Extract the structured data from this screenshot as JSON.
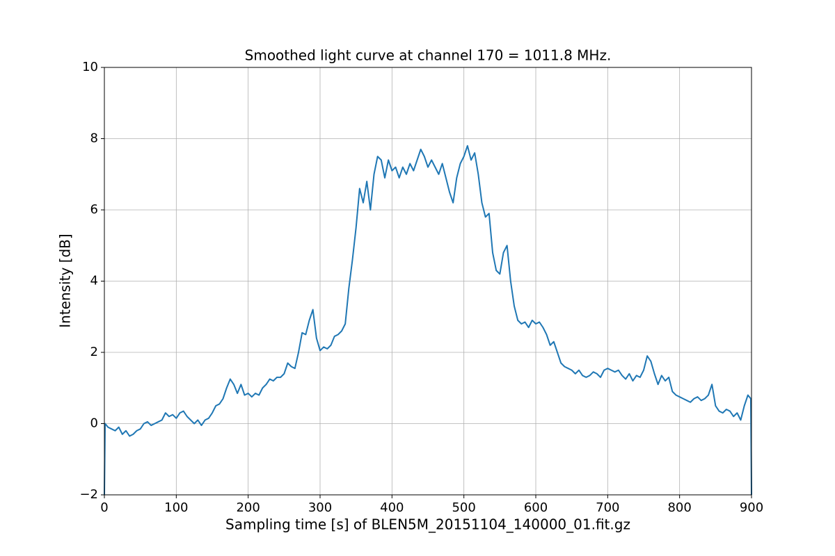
{
  "chart_data": {
    "type": "line",
    "title": "Smoothed light curve at channel 170 = 1011.8 MHz.",
    "x_label": "Sampling time [s] of BLEN5M_20151104_140000_01.fit.gz",
    "y_label": "Intensity [dB]",
    "x": [
      0,
      1,
      5,
      10,
      15,
      20,
      25,
      30,
      35,
      40,
      45,
      50,
      55,
      60,
      65,
      70,
      75,
      80,
      85,
      90,
      95,
      100,
      105,
      110,
      115,
      120,
      125,
      130,
      135,
      140,
      145,
      150,
      155,
      160,
      165,
      170,
      175,
      180,
      185,
      190,
      195,
      200,
      205,
      210,
      215,
      220,
      225,
      230,
      235,
      240,
      245,
      250,
      255,
      260,
      265,
      270,
      275,
      280,
      285,
      290,
      295,
      300,
      305,
      310,
      315,
      320,
      325,
      330,
      335,
      340,
      345,
      350,
      355,
      360,
      365,
      370,
      375,
      380,
      385,
      390,
      395,
      400,
      405,
      410,
      415,
      420,
      425,
      430,
      435,
      440,
      445,
      450,
      455,
      460,
      465,
      470,
      475,
      480,
      485,
      490,
      495,
      500,
      505,
      510,
      515,
      520,
      525,
      530,
      535,
      540,
      545,
      550,
      555,
      560,
      565,
      570,
      575,
      580,
      585,
      590,
      595,
      600,
      605,
      610,
      615,
      620,
      625,
      630,
      635,
      640,
      645,
      650,
      655,
      660,
      665,
      670,
      675,
      680,
      685,
      690,
      695,
      700,
      705,
      710,
      715,
      720,
      725,
      730,
      735,
      740,
      745,
      750,
      755,
      760,
      765,
      770,
      775,
      780,
      785,
      790,
      795,
      800,
      805,
      810,
      815,
      820,
      825,
      830,
      835,
      840,
      845,
      850,
      855,
      860,
      865,
      870,
      875,
      880,
      885,
      890,
      895,
      899,
      900
    ],
    "series": [
      {
        "name": "light curve",
        "color": "#1f77b4",
        "values": [
          -2,
          0,
          -0.1,
          -0.15,
          -0.2,
          -0.1,
          -0.3,
          -0.2,
          -0.35,
          -0.3,
          -0.2,
          -0.15,
          0,
          0.05,
          -0.05,
          0,
          0.05,
          0.1,
          0.3,
          0.2,
          0.25,
          0.15,
          0.3,
          0.35,
          0.2,
          0.1,
          0,
          0.1,
          -0.05,
          0.1,
          0.15,
          0.3,
          0.5,
          0.55,
          0.7,
          1.0,
          1.25,
          1.1,
          0.85,
          1.1,
          0.8,
          0.85,
          0.75,
          0.85,
          0.8,
          1.0,
          1.1,
          1.25,
          1.2,
          1.3,
          1.3,
          1.4,
          1.7,
          1.6,
          1.55,
          2.0,
          2.55,
          2.5,
          2.9,
          3.2,
          2.4,
          2.05,
          2.15,
          2.1,
          2.2,
          2.45,
          2.5,
          2.6,
          2.8,
          3.8,
          4.6,
          5.5,
          6.6,
          6.2,
          6.8,
          6.0,
          7.0,
          7.5,
          7.4,
          6.9,
          7.4,
          7.1,
          7.2,
          6.9,
          7.2,
          7.0,
          7.3,
          7.1,
          7.4,
          7.7,
          7.5,
          7.2,
          7.4,
          7.2,
          7.0,
          7.3,
          6.9,
          6.5,
          6.2,
          6.9,
          7.3,
          7.5,
          7.8,
          7.4,
          7.6,
          7.0,
          6.2,
          5.8,
          5.9,
          4.8,
          4.3,
          4.2,
          4.8,
          5.0,
          4.0,
          3.3,
          2.9,
          2.8,
          2.85,
          2.7,
          2.9,
          2.8,
          2.85,
          2.7,
          2.5,
          2.2,
          2.3,
          2.0,
          1.7,
          1.6,
          1.55,
          1.5,
          1.4,
          1.5,
          1.35,
          1.3,
          1.35,
          1.45,
          1.4,
          1.3,
          1.5,
          1.55,
          1.5,
          1.45,
          1.5,
          1.35,
          1.25,
          1.4,
          1.2,
          1.35,
          1.3,
          1.5,
          1.9,
          1.75,
          1.4,
          1.1,
          1.35,
          1.2,
          1.3,
          0.9,
          0.8,
          0.75,
          0.7,
          0.65,
          0.6,
          0.7,
          0.75,
          0.65,
          0.7,
          0.8,
          1.1,
          0.5,
          0.35,
          0.3,
          0.4,
          0.35,
          0.2,
          0.3,
          0.1,
          0.5,
          0.8,
          0.7,
          -2
        ]
      }
    ],
    "xlim": [
      0,
      900
    ],
    "xticks": [
      0,
      100,
      200,
      300,
      400,
      500,
      600,
      700,
      800,
      900
    ],
    "ylim": [
      -2,
      10
    ],
    "yticks": [
      {
        "value": -2,
        "label": "−2"
      },
      0,
      2,
      4,
      6,
      8,
      10
    ],
    "grid": true
  }
}
